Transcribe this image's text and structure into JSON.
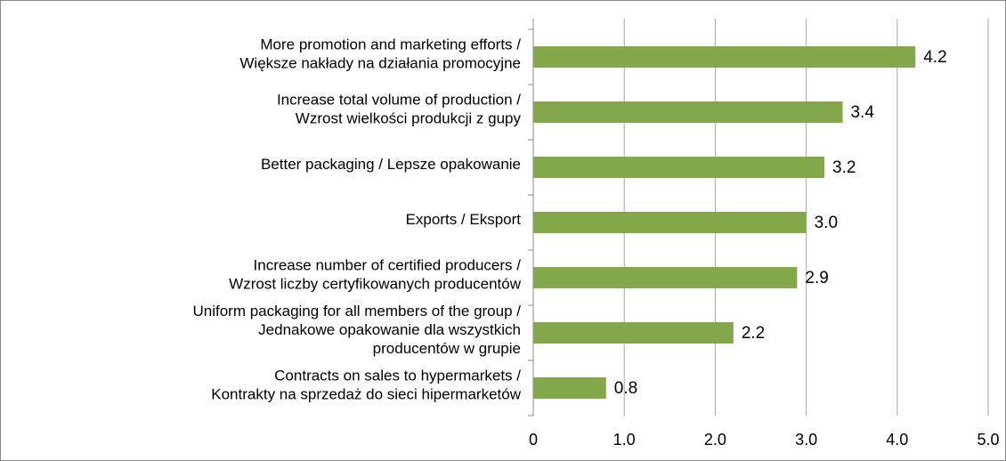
{
  "chart_data": {
    "type": "bar",
    "orientation": "horizontal",
    "categories": [
      [
        "More promotion and marketing efforts /",
        "Większe nakłady na działania promocyjne"
      ],
      [
        "Increase total volume of production /",
        "Wzrost wielkości produkcji z gupy"
      ],
      [
        "Better packaging / Lepsze opakowanie"
      ],
      [
        "Exports / Eksport"
      ],
      [
        "Increase number of certified producers /",
        "Wzrost liczby certyfikowanych producentów"
      ],
      [
        "Uniform packaging for all members of the group /",
        "Jednakowe opakowanie dla wszystkich",
        "producentów w grupie"
      ],
      [
        "Contracts on sales to hypermarkets /",
        "Kontrakty na sprzedaż do sieci hipermarketów"
      ]
    ],
    "values": [
      4.2,
      3.4,
      3.2,
      3.0,
      2.9,
      2.2,
      0.8
    ],
    "value_labels": [
      "4.2",
      "3.4",
      "3.2",
      "3.0",
      "2.9",
      "2.2",
      "0.8"
    ],
    "color": "#82a84b",
    "xlim": [
      0,
      5
    ],
    "xticks": [
      0,
      {
        "value": 1,
        "label": "1.0"
      },
      {
        "value": 2,
        "label": "2.0"
      },
      {
        "value": 3,
        "label": "3.0"
      },
      {
        "value": 4,
        "label": "4.0"
      },
      {
        "value": 5,
        "label": "5.0"
      }
    ],
    "grid": true
  }
}
